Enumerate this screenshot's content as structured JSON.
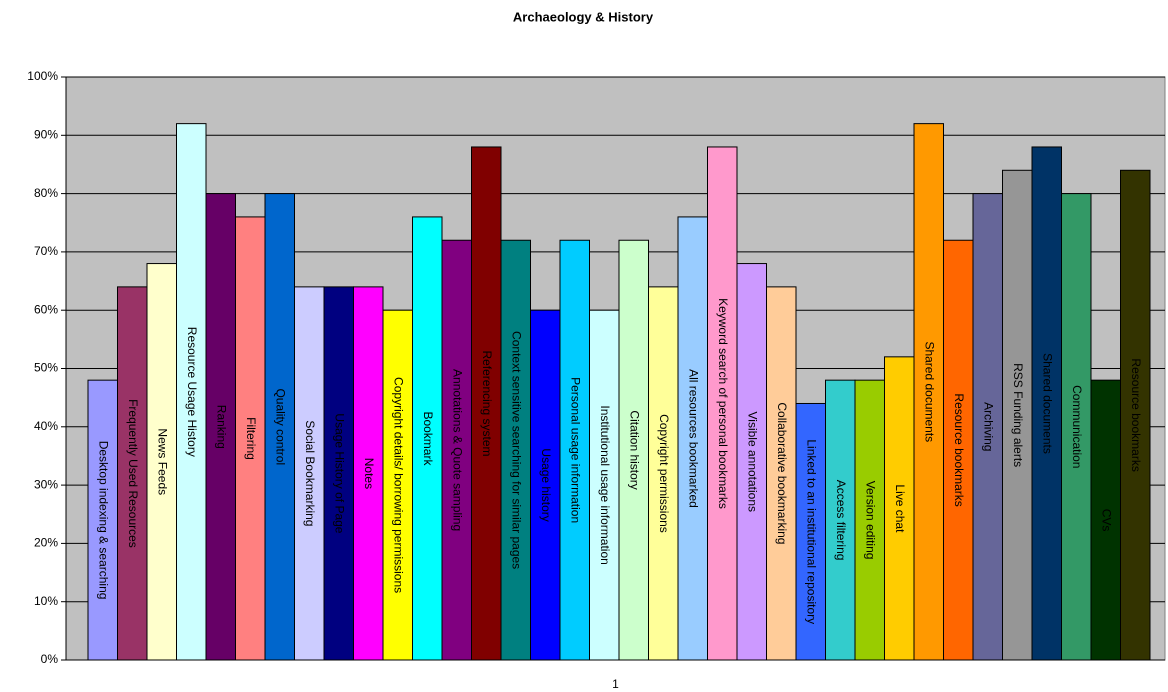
{
  "chart_data": {
    "type": "bar",
    "title": "Archaeology & History",
    "categories": [
      "1"
    ],
    "ylim": [
      0,
      100
    ],
    "yticks": [
      {
        "value": 0,
        "label": "0%"
      },
      {
        "value": 10,
        "label": "10%"
      },
      {
        "value": 20,
        "label": "20%"
      },
      {
        "value": 30,
        "label": "30%"
      },
      {
        "value": 40,
        "label": "40%"
      },
      {
        "value": 50,
        "label": "50%"
      },
      {
        "value": 60,
        "label": "60%"
      },
      {
        "value": 70,
        "label": "70%"
      },
      {
        "value": 80,
        "label": "80%"
      },
      {
        "value": 90,
        "label": "90%"
      },
      {
        "value": 100,
        "label": "100%"
      }
    ],
    "grid": true,
    "series": [
      {
        "name": "Desktop indexing & searching",
        "color": "#9999FF",
        "values": [
          48
        ]
      },
      {
        "name": "Frequently Used Resources",
        "color": "#993366",
        "values": [
          64
        ]
      },
      {
        "name": "News Feeds",
        "color": "#FFFFCC",
        "values": [
          68
        ]
      },
      {
        "name": "Resource Usage History",
        "color": "#CCFFFF",
        "values": [
          92
        ]
      },
      {
        "name": "Ranking",
        "color": "#660066",
        "values": [
          80
        ]
      },
      {
        "name": "Filtering",
        "color": "#FF8080",
        "values": [
          76
        ]
      },
      {
        "name": "Quality control",
        "color": "#0066CC",
        "values": [
          80
        ]
      },
      {
        "name": "Social Bookmarking",
        "color": "#CCCCFF",
        "values": [
          64
        ]
      },
      {
        "name": "Usage History of Page",
        "color": "#000080",
        "values": [
          64
        ]
      },
      {
        "name": "Notes",
        "color": "#FF00FF",
        "values": [
          64
        ]
      },
      {
        "name": "Copyright details/ borrowing permissions",
        "color": "#FFFF00",
        "values": [
          60
        ]
      },
      {
        "name": "Bookmark",
        "color": "#00FFFF",
        "values": [
          76
        ]
      },
      {
        "name": "Annotations & Quote sampling",
        "color": "#800080",
        "values": [
          72
        ]
      },
      {
        "name": "Referencing system",
        "color": "#800000",
        "values": [
          88
        ]
      },
      {
        "name": "Context sensitive searching for similar pages",
        "color": "#008080",
        "values": [
          72
        ]
      },
      {
        "name": "Usage history",
        "color": "#0000FF",
        "values": [
          60
        ]
      },
      {
        "name": "Personal usage information",
        "color": "#00CCFF",
        "values": [
          72
        ]
      },
      {
        "name": "Institutional usage information",
        "color": "#CCFFFF",
        "values": [
          60
        ]
      },
      {
        "name": "Citation history",
        "color": "#CCFFCC",
        "values": [
          72
        ]
      },
      {
        "name": "Copyright permissions",
        "color": "#FFFF99",
        "values": [
          64
        ]
      },
      {
        "name": "All resources bookmarked",
        "color": "#99CCFF",
        "values": [
          76
        ]
      },
      {
        "name": "Keyword search of personal bookmarks",
        "color": "#FF99CC",
        "values": [
          88
        ]
      },
      {
        "name": "Visible annotations",
        "color": "#CC99FF",
        "values": [
          68
        ]
      },
      {
        "name": "Collaborative bookmarking",
        "color": "#FFCC99",
        "values": [
          64
        ]
      },
      {
        "name": "Linked to an institutional repository",
        "color": "#3366FF",
        "values": [
          44
        ]
      },
      {
        "name": "Access filtering",
        "color": "#33CCCC",
        "values": [
          48
        ]
      },
      {
        "name": "Version editing",
        "color": "#99CC00",
        "values": [
          48
        ]
      },
      {
        "name": "Live chat",
        "color": "#FFCC00",
        "values": [
          52
        ]
      },
      {
        "name": "Shared documents",
        "color": "#FF9900",
        "values": [
          92
        ]
      },
      {
        "name": "Resource bookmarks",
        "color": "#FF6600",
        "values": [
          72
        ]
      },
      {
        "name": "Archiving",
        "color": "#666699",
        "values": [
          80
        ]
      },
      {
        "name": "RSS Funding alerts",
        "color": "#969696",
        "values": [
          84
        ]
      },
      {
        "name": "Shared documents",
        "color": "#003366",
        "values": [
          88
        ]
      },
      {
        "name": "Communication",
        "color": "#339966",
        "values": [
          80
        ]
      },
      {
        "name": "CVs",
        "color": "#003300",
        "values": [
          48
        ]
      },
      {
        "name": "Resource bookmarks",
        "color": "#333300",
        "values": [
          84
        ]
      }
    ]
  }
}
